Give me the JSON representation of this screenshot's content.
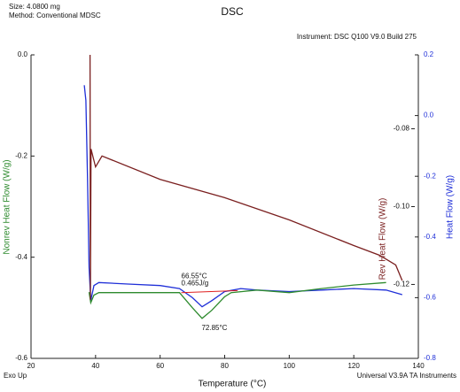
{
  "chart_data": {
    "type": "line",
    "title": "DSC",
    "sample_size": "Size: 4.0800 mg",
    "method": "Method: Conventional MDSC",
    "instrument": "Instrument: DSC Q100 V9.0 Build 275",
    "x_label": "Temperature (°C)",
    "y_label": "Nonrev Heat Flow (W/g)",
    "y2_label": "Rev Heat Flow (W/g)",
    "y3_label": "Heat Flow (W/g)",
    "footer_left": "Exo Up",
    "footer_right": "Universal V3.9A TA Instruments",
    "xlim": [
      20,
      140
    ],
    "xticks": [
      20,
      40,
      60,
      80,
      100,
      120,
      140
    ],
    "ylim": [
      -0.6,
      0
    ],
    "yticks": [
      {
        "value": 0,
        "label": "0.0"
      },
      -0.2,
      -0.4,
      -0.6
    ],
    "y2lim": [
      -0.139,
      -0.061
    ],
    "y2ticks": [
      -0.08,
      {
        "value": -0.1,
        "label": "-0.10"
      },
      -0.12
    ],
    "y3lim": [
      -0.8,
      0.2
    ],
    "y3ticks": [
      0.2,
      {
        "value": 0,
        "label": "0.0"
      },
      -0.2,
      -0.4,
      -0.6,
      -0.8
    ],
    "series": [
      {
        "name": "Heat Flow",
        "axis": "y3",
        "color": "#1f2fd8",
        "x": [
          36.5,
          37,
          37.5,
          38,
          38.5,
          39.5,
          41,
          50,
          60,
          66,
          70,
          73,
          76,
          80,
          85,
          90,
          100,
          110,
          120,
          130,
          135
        ],
        "values": [
          0.1,
          0.05,
          -0.2,
          -0.5,
          -0.61,
          -0.56,
          -0.55,
          -0.555,
          -0.56,
          -0.57,
          -0.6,
          -0.63,
          -0.61,
          -0.58,
          -0.57,
          -0.575,
          -0.58,
          -0.575,
          -0.57,
          -0.575,
          -0.59
        ]
      },
      {
        "name": "Nonrev Heat Flow",
        "axis": "y",
        "color": "#2e8b2e",
        "x": [
          38,
          38.5,
          39.5,
          41,
          50,
          60,
          66,
          70,
          73,
          76,
          80,
          82,
          90,
          100,
          110,
          120,
          130
        ],
        "values": [
          -0.469,
          -0.49,
          -0.475,
          -0.47,
          -0.47,
          -0.47,
          -0.47,
          -0.5,
          -0.521,
          -0.505,
          -0.478,
          -0.47,
          -0.465,
          -0.47,
          -0.462,
          -0.455,
          -0.45
        ]
      },
      {
        "name": "Rev Heat Flow",
        "axis": "y2",
        "color": "#7a1f1f",
        "x": [
          38.3,
          38.4,
          38.6,
          40,
          42,
          60,
          80,
          100,
          120,
          128,
          133,
          135
        ],
        "values": [
          -0.061,
          -0.1239,
          -0.0852,
          -0.0898,
          -0.087,
          -0.093,
          -0.0977,
          -0.1034,
          -0.11,
          -0.1125,
          -0.115,
          -0.119
        ]
      }
    ],
    "integration": {
      "axis": "y",
      "color": "#e02020",
      "x": [
        66.55,
        84
      ],
      "values": [
        -0.47,
        -0.466
      ]
    },
    "annotations": [
      {
        "text": "66.55°C",
        "x": 66.55,
        "y": -0.438
      },
      {
        "text": "0.465J/g",
        "x": 66.55,
        "y": -0.452
      },
      {
        "text": "72.85°C",
        "x": 72.85,
        "y": -0.54
      }
    ]
  }
}
